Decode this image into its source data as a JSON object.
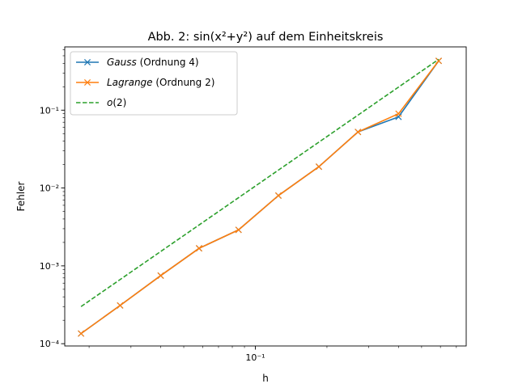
{
  "chart_data": {
    "type": "line",
    "title": "Abb. 2: sin(x²+y²) auf dem Einheitskreis",
    "xlabel": "h",
    "ylabel": "Fehler",
    "xscale": "log",
    "yscale": "log",
    "xlim": [
      0.0158,
      0.77
    ],
    "ylim": [
      9.35e-05,
      0.65
    ],
    "x_major_ticks": [
      {
        "value": 0.1,
        "label": "10⁻¹"
      }
    ],
    "y_major_ticks": [
      {
        "value": 0.0001,
        "label": "10⁻⁴"
      },
      {
        "value": 0.001,
        "label": "10⁻³"
      },
      {
        "value": 0.01,
        "label": "10⁻²"
      },
      {
        "value": 0.1,
        "label": "10⁻¹"
      }
    ],
    "legend_position": "top-left",
    "grid": false,
    "series": [
      {
        "name": "Gauss (Ordnung 4)",
        "legend_italic": "Gauss",
        "legend_rest": " (Ordnung 4)",
        "color": "#1f77b4",
        "marker": "x",
        "x": [
          0.0185,
          0.027,
          0.04,
          0.058,
          0.085,
          0.125,
          0.185,
          0.27,
          0.4,
          0.59
        ],
        "y": [
          0.000135,
          0.00031,
          0.00075,
          0.00168,
          0.0029,
          0.008,
          0.0188,
          0.0525,
          0.082,
          0.43
        ]
      },
      {
        "name": "Lagrange (Ordnung 2)",
        "legend_italic": "Lagrange",
        "legend_rest": " (Ordnung 2)",
        "color": "#ff7f0e",
        "marker": "x",
        "x": [
          0.0185,
          0.027,
          0.04,
          0.058,
          0.085,
          0.125,
          0.185,
          0.27,
          0.4,
          0.59
        ],
        "y": [
          0.000135,
          0.00031,
          0.00075,
          0.00168,
          0.0029,
          0.008,
          0.0188,
          0.0525,
          0.09,
          0.43
        ]
      },
      {
        "name": "o(2)",
        "legend_italic": "o",
        "legend_rest": "(2)",
        "color": "#2ca02c",
        "dash": true,
        "x": [
          0.0185,
          0.59
        ],
        "y": [
          0.0003,
          0.45
        ]
      }
    ]
  }
}
